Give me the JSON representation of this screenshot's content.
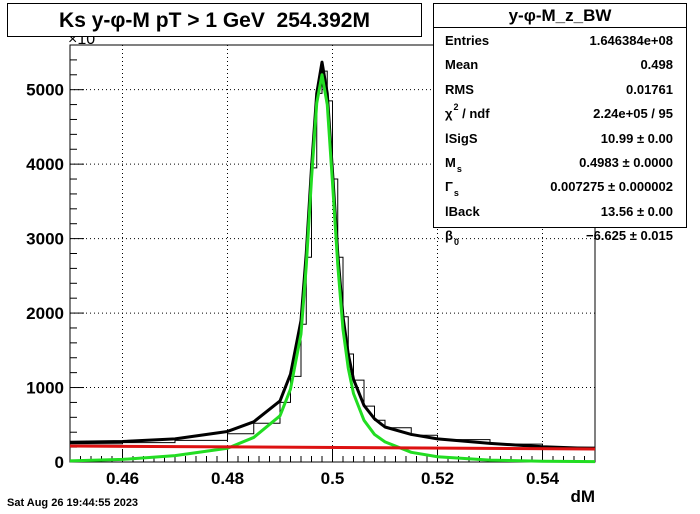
{
  "chart_data": {
    "type": "line",
    "title": "Ks y-φ-M pT > 1 GeV  254.392M",
    "xlabel": "dM",
    "ylabel": "",
    "y_multiplier_label": "×10",
    "xlim": [
      0.45,
      0.55
    ],
    "ylim": [
      0,
      5600
    ],
    "x_ticks": [
      {
        "value": 0.46,
        "label": "0.46"
      },
      {
        "value": 0.48,
        "label": "0.48"
      },
      {
        "value": 0.5,
        "label": "0.5"
      },
      {
        "value": 0.52,
        "label": "0.52"
      },
      {
        "value": 0.54,
        "label": "0.54"
      }
    ],
    "y_ticks": [
      {
        "value": 0,
        "label": "0"
      },
      {
        "value": 1000,
        "label": "1000"
      },
      {
        "value": 2000,
        "label": "2000"
      },
      {
        "value": 3000,
        "label": "3000"
      },
      {
        "value": 4000,
        "label": "4000"
      },
      {
        "value": 5000,
        "label": "5000"
      }
    ],
    "grid": true,
    "series": [
      {
        "kind": "histogram",
        "color": "#000000",
        "x": [
          0.45,
          0.46,
          0.47,
          0.48,
          0.485,
          0.49,
          0.492,
          0.494,
          0.495,
          0.496,
          0.497,
          0.498,
          0.499,
          0.5,
          0.501,
          0.502,
          0.503,
          0.504,
          0.506,
          0.508,
          0.51,
          0.515,
          0.52,
          0.53,
          0.54,
          0.55
        ],
        "values": [
          245,
          260,
          290,
          380,
          520,
          800,
          1150,
          1850,
          2750,
          3950,
          4950,
          5250,
          4850,
          3800,
          2750,
          1950,
          1450,
          1100,
          750,
          560,
          460,
          360,
          300,
          240,
          200,
          175
        ]
      },
      {
        "kind": "fit-total",
        "color": "#000000",
        "x": [
          0.45,
          0.46,
          0.47,
          0.48,
          0.485,
          0.49,
          0.492,
          0.494,
          0.495,
          0.496,
          0.497,
          0.498,
          0.499,
          0.5,
          0.501,
          0.502,
          0.503,
          0.504,
          0.506,
          0.508,
          0.51,
          0.515,
          0.52,
          0.53,
          0.54,
          0.55
        ],
        "values": [
          265,
          275,
          310,
          410,
          540,
          820,
          1180,
          1900,
          2800,
          3950,
          4950,
          5370,
          4950,
          3900,
          2800,
          1950,
          1450,
          1110,
          760,
          580,
          470,
          370,
          310,
          250,
          205,
          180
        ]
      },
      {
        "kind": "signal",
        "color": "#22dd22",
        "x": [
          0.45,
          0.46,
          0.47,
          0.48,
          0.485,
          0.49,
          0.492,
          0.494,
          0.495,
          0.496,
          0.497,
          0.498,
          0.499,
          0.5,
          0.501,
          0.502,
          0.503,
          0.504,
          0.506,
          0.508,
          0.51,
          0.515,
          0.52,
          0.53,
          0.54,
          0.55
        ],
        "values": [
          15,
          35,
          85,
          185,
          330,
          620,
          980,
          1720,
          2630,
          3800,
          4820,
          5200,
          4800,
          3750,
          2650,
          1780,
          1260,
          920,
          560,
          370,
          270,
          130,
          70,
          25,
          10,
          5
        ]
      },
      {
        "kind": "background",
        "color": "#dd1111",
        "x": [
          0.45,
          0.55
        ],
        "values": [
          215,
          175
        ]
      }
    ]
  },
  "stats": {
    "title": "y-φ-M_z_BW",
    "rows": [
      {
        "key": "Entries",
        "value": "1.646384e+08"
      },
      {
        "key": "Mean",
        "value": "0.498"
      },
      {
        "key": "RMS",
        "value": "0.01761"
      },
      {
        "key": "χ",
        "key_sup": "2",
        "key_rest": " / ndf",
        "value": "2.24e+05 / 95"
      },
      {
        "key": "lSigS",
        "value": "10.99 ± 0.00"
      },
      {
        "key": "M",
        "key_sub": "s",
        "value": "0.4983 ± 0.0000"
      },
      {
        "key": "Γ",
        "key_sub": "s",
        "value": "0.007275 ± 0.000002"
      },
      {
        "key": "lBack",
        "value": "13.56 ± 0.00"
      },
      {
        "key": "β",
        "key_sub": "0",
        "value": "−6.625 ± 0.015"
      }
    ]
  },
  "timestamp": "Sat Aug 26 19:44:55 2023"
}
